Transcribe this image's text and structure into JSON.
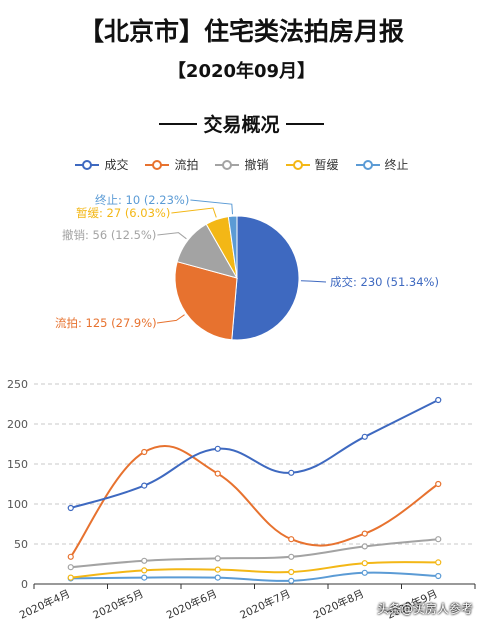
{
  "title": "【北京市】住宅类法拍房月报",
  "subtitle": "【2020年09月】",
  "section_title": "交易概况",
  "watermark": "头条@买房人参考",
  "colors": {
    "成交": "#3e69c0",
    "流拍": "#e7722f",
    "撤销": "#a3a3a3",
    "暂缓": "#f3b716",
    "终止": "#5b9bd5"
  },
  "legend": [
    "成交",
    "流拍",
    "撤销",
    "暂缓",
    "终止"
  ],
  "chart_data": [
    {
      "type": "pie",
      "slices": [
        {
          "name": "成交",
          "value": 230,
          "label": "成交: 230 (51.34%)"
        },
        {
          "name": "流拍",
          "value": 125,
          "label": "流拍: 125 (27.9%)"
        },
        {
          "name": "撤销",
          "value": 56,
          "label": "撤销: 56 (12.5%)"
        },
        {
          "name": "暂缓",
          "value": 27,
          "label": "暂缓: 27 (6.03%)"
        },
        {
          "name": "终止",
          "value": 10,
          "label": "终止: 10 (2.23%)"
        }
      ]
    },
    {
      "type": "line",
      "categories": [
        "2020年4月",
        "2020年5月",
        "2020年6月",
        "2020年7月",
        "2020年8月",
        "2020年9月"
      ],
      "series": [
        {
          "name": "成交",
          "values": [
            95,
            123,
            169,
            139,
            184,
            230
          ]
        },
        {
          "name": "流拍",
          "values": [
            34,
            165,
            138,
            56,
            63,
            125
          ]
        },
        {
          "name": "撤销",
          "values": [
            21,
            29,
            32,
            34,
            47,
            56
          ]
        },
        {
          "name": "暂缓",
          "values": [
            8,
            17,
            18,
            15,
            26,
            27
          ]
        },
        {
          "name": "终止",
          "values": [
            7,
            8,
            8,
            4,
            14,
            10
          ]
        }
      ],
      "ylim": [
        0,
        250
      ],
      "yticks": [
        0,
        50,
        100,
        150,
        200,
        250
      ],
      "grid": true
    }
  ]
}
